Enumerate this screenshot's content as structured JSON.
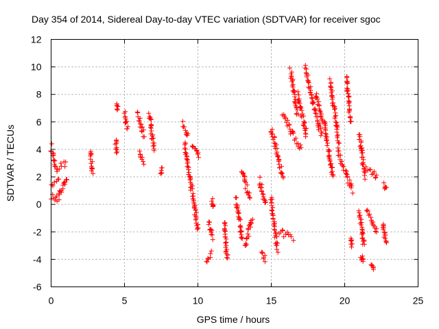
{
  "chart_data": {
    "type": "scatter",
    "title": "Day 354 of 2014, Sidereal Day-to-day VTEC variation (SDTVAR) for receiver sgoc",
    "xlabel": "GPS time / hours",
    "ylabel": "SDTVAR / TECUs",
    "xlim": [
      0,
      25
    ],
    "ylim": [
      -6,
      12
    ],
    "xticks": [
      "0",
      "5",
      "10",
      "15",
      "20",
      "25"
    ],
    "yticks": [
      "-6",
      "-4",
      "-2",
      "0",
      "2",
      "4",
      "6",
      "8",
      "10",
      "12"
    ],
    "grid": true,
    "marker": "+",
    "color": "#ff0000",
    "series": [
      {
        "name": "SDTVAR",
        "clusters": [
          {
            "x": [
              0.0,
              0.35
            ],
            "y": [
              4.2,
              2.6
            ]
          },
          {
            "x": [
              0.0,
              0.5
            ],
            "y": [
              1.4,
              1.8
            ]
          },
          {
            "x": [
              0.0,
              0.4
            ],
            "y": [
              0.6,
              0.4
            ]
          },
          {
            "x": [
              0.4,
              1.0
            ],
            "y": [
              2.6,
              3.0
            ]
          },
          {
            "x": [
              0.5,
              1.1
            ],
            "y": [
              0.5,
              2.0
            ]
          },
          {
            "x": [
              2.7,
              2.8
            ],
            "y": [
              3.8,
              2.3
            ]
          },
          {
            "x": [
              4.4,
              4.5
            ],
            "y": [
              4.7,
              3.7
            ]
          },
          {
            "x": [
              4.5,
              4.5
            ],
            "y": [
              7.2,
              7.0
            ]
          },
          {
            "x": [
              5.0,
              5.2
            ],
            "y": [
              6.7,
              5.5
            ]
          },
          {
            "x": [
              5.9,
              6.3
            ],
            "y": [
              6.6,
              5.0
            ]
          },
          {
            "x": [
              6.0,
              6.3
            ],
            "y": [
              3.7,
              2.9
            ]
          },
          {
            "x": [
              6.7,
              7.0
            ],
            "y": [
              6.6,
              4.0
            ]
          },
          {
            "x": [
              7.5,
              7.5
            ],
            "y": [
              2.5,
              2.3
            ]
          },
          {
            "x": [
              9.0,
              9.3
            ],
            "y": [
              5.9,
              5.0
            ]
          },
          {
            "x": [
              9.1,
              10.0
            ],
            "y": [
              4.5,
              -1.8
            ]
          },
          {
            "x": [
              9.6,
              10.1
            ],
            "y": [
              4.4,
              3.5
            ]
          },
          {
            "x": [
              10.6,
              10.9
            ],
            "y": [
              -4.2,
              -3.6
            ]
          },
          {
            "x": [
              10.7,
              11.0
            ],
            "y": [
              -1.3,
              -2.4
            ]
          },
          {
            "x": [
              11.0,
              11.0
            ],
            "y": [
              0.2,
              -0.2
            ]
          },
          {
            "x": [
              11.8,
              12.0
            ],
            "y": [
              -1.2,
              -4.0
            ]
          },
          {
            "x": [
              12.6,
              13.0
            ],
            "y": [
              0.5,
              -2.5
            ]
          },
          {
            "x": [
              13.0,
              13.5
            ],
            "y": [
              2.5,
              0.5
            ]
          },
          {
            "x": [
              13.2,
              13.7
            ],
            "y": [
              -3.0,
              -1.0
            ]
          },
          {
            "x": [
              14.2,
              14.6
            ],
            "y": [
              1.8,
              0.0
            ]
          },
          {
            "x": [
              14.3,
              14.6
            ],
            "y": [
              -3.5,
              -4.0
            ]
          },
          {
            "x": [
              15.0,
              15.4
            ],
            "y": [
              0.5,
              -3.3
            ]
          },
          {
            "x": [
              15.0,
              15.8
            ],
            "y": [
              5.5,
              2.0
            ]
          },
          {
            "x": [
              15.5,
              16.5
            ],
            "y": [
              -2.0,
              -2.4
            ]
          },
          {
            "x": [
              15.8,
              17.0
            ],
            "y": [
              6.5,
              4.0
            ]
          },
          {
            "x": [
              16.3,
              16.8
            ],
            "y": [
              9.7,
              6.5
            ]
          },
          {
            "x": [
              16.8,
              17.4
            ],
            "y": [
              8.0,
              5.0
            ]
          },
          {
            "x": [
              17.3,
              18.4
            ],
            "y": [
              10.0,
              5.0
            ]
          },
          {
            "x": [
              18.0,
              18.5
            ],
            "y": [
              8.0,
              6.0
            ]
          },
          {
            "x": [
              18.6,
              19.2
            ],
            "y": [
              6.0,
              2.0
            ]
          },
          {
            "x": [
              19.0,
              19.6
            ],
            "y": [
              9.0,
              4.5
            ]
          },
          {
            "x": [
              19.5,
              20.5
            ],
            "y": [
              4.0,
              1.0
            ]
          },
          {
            "x": [
              20.1,
              20.4
            ],
            "y": [
              9.3,
              6.0
            ]
          },
          {
            "x": [
              20.4,
              20.5
            ],
            "y": [
              -2.6,
              -3.0
            ]
          },
          {
            "x": [
              21.0,
              21.4
            ],
            "y": [
              5.1,
              2.0
            ]
          },
          {
            "x": [
              21.0,
              21.3
            ],
            "y": [
              -0.5,
              -3.0
            ]
          },
          {
            "x": [
              21.1,
              21.3
            ],
            "y": [
              -3.8,
              -4.0
            ]
          },
          {
            "x": [
              21.5,
              22.2
            ],
            "y": [
              2.6,
              2.0
            ]
          },
          {
            "x": [
              21.5,
              22.2
            ],
            "y": [
              -0.5,
              -2.0
            ]
          },
          {
            "x": [
              21.8,
              22.0
            ],
            "y": [
              -4.2,
              -4.7
            ]
          },
          {
            "x": [
              22.7,
              22.8
            ],
            "y": [
              1.4,
              1.2
            ]
          },
          {
            "x": [
              22.6,
              22.8
            ],
            "y": [
              -1.4,
              -2.9
            ]
          }
        ]
      }
    ]
  }
}
